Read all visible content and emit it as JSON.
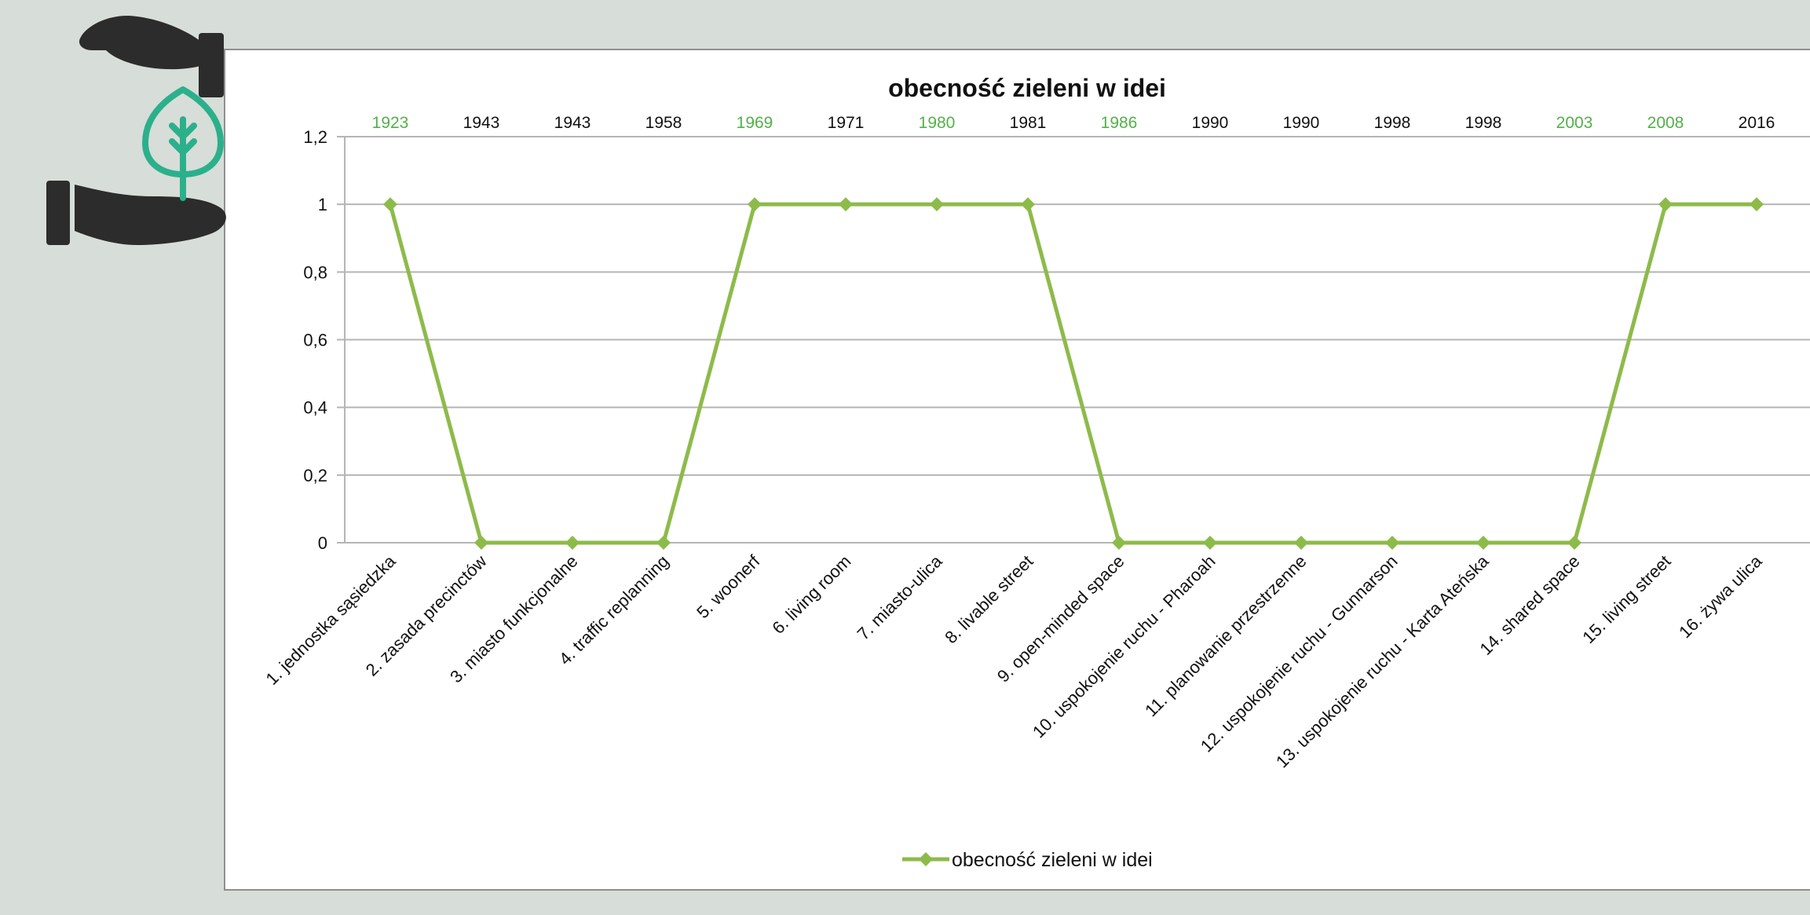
{
  "colors": {
    "line": "#8dbb4a",
    "year_green": "#53b04a",
    "year_black": "#111111",
    "gridline": "#b5b5b5",
    "logo_hand": "#2c2c2c",
    "logo_leaf": "#2bb08c"
  },
  "logo": {
    "icon": "hands-holding-leaf-icon"
  },
  "chart_data": {
    "type": "line",
    "title": "obecność zieleni w idei",
    "xlabel": "",
    "ylabel": "",
    "ylim": [
      0,
      1.2
    ],
    "yticks": [
      "0",
      "0,2",
      "0,4",
      "0,6",
      "0,8",
      "1",
      "1,2"
    ],
    "ytick_values": [
      0,
      0.2,
      0.4,
      0.6,
      0.8,
      1,
      1.2
    ],
    "grid": true,
    "legend": "bottom",
    "categories": [
      "1. jednostka sąsiedzka",
      "2. zasada precinctów",
      "3. miasto funkcjonalne",
      "4. traffic replanning",
      "5. woonerf",
      "6. living room",
      "7. miasto-ulica",
      "8. livable street",
      "9. open-minded space",
      "10. uspokojenie ruchu - Pharoah",
      "11. planowanie przestrzenne",
      "12. uspokojenie ruchu - Gunnarson",
      "13. uspokojenie ruchu - Karta Ateńska",
      "14. shared space",
      "15. living street",
      "16. żywa ulica"
    ],
    "years": [
      "1923",
      "1943",
      "1943",
      "1958",
      "1969",
      "1971",
      "1980",
      "1981",
      "1986",
      "1990",
      "1990",
      "1998",
      "1998",
      "2003",
      "2008",
      "2016"
    ],
    "year_highlight": [
      true,
      false,
      false,
      false,
      true,
      false,
      true,
      false,
      true,
      false,
      false,
      false,
      false,
      true,
      true,
      false
    ],
    "series": [
      {
        "name": "obecność zieleni w idei",
        "values": [
          1,
          0,
          0,
          0,
          1,
          1,
          1,
          1,
          0,
          0,
          0,
          0,
          0,
          0,
          1,
          1
        ]
      }
    ]
  }
}
